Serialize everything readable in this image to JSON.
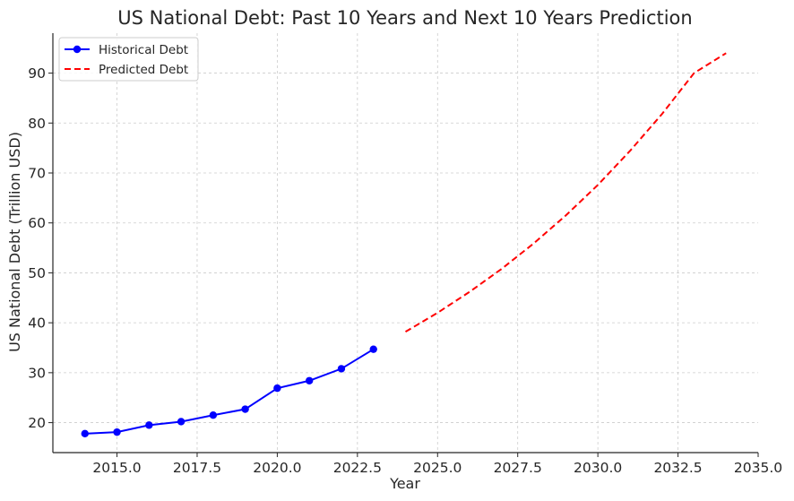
{
  "chart_data": {
    "type": "line",
    "title": "US National Debt: Past 10 Years and Next 10 Years Prediction",
    "xlabel": "Year",
    "ylabel": "US National Debt (Trillion USD)",
    "xlim": [
      2013.0,
      2035.0
    ],
    "ylim": [
      14.0,
      98.0
    ],
    "x_ticks": [
      2015.0,
      2017.5,
      2020.0,
      2022.5,
      2025.0,
      2027.5,
      2030.0,
      2032.5,
      2035.0
    ],
    "x_tick_labels": [
      "2015.0",
      "2017.5",
      "2020.0",
      "2022.5",
      "2025.0",
      "2027.5",
      "2030.0",
      "2032.5",
      "2035.0"
    ],
    "y_ticks": [
      20,
      30,
      40,
      50,
      60,
      70,
      80,
      90
    ],
    "y_tick_labels": [
      "20",
      "30",
      "40",
      "50",
      "60",
      "70",
      "80",
      "90"
    ],
    "grid": true,
    "legend_position": "top-left",
    "series": [
      {
        "name": "Historical Debt",
        "style": "solid-with-markers",
        "color": "#0000ff",
        "x": [
          2014,
          2015,
          2016,
          2017,
          2018,
          2019,
          2020,
          2021,
          2022,
          2023
        ],
        "values": [
          17.8,
          18.1,
          19.5,
          20.2,
          21.5,
          22.7,
          26.9,
          28.4,
          30.8,
          34.7
        ]
      },
      {
        "name": "Predicted Debt",
        "style": "dashed",
        "color": "#ff0000",
        "x": [
          2024,
          2025,
          2026,
          2027,
          2028,
          2029,
          2030,
          2031,
          2032,
          2033,
          2034
        ],
        "values": [
          38.2,
          42.0,
          46.2,
          50.8,
          55.9,
          61.5,
          67.6,
          74.4,
          81.8,
          90.0,
          94.0
        ]
      }
    ]
  }
}
